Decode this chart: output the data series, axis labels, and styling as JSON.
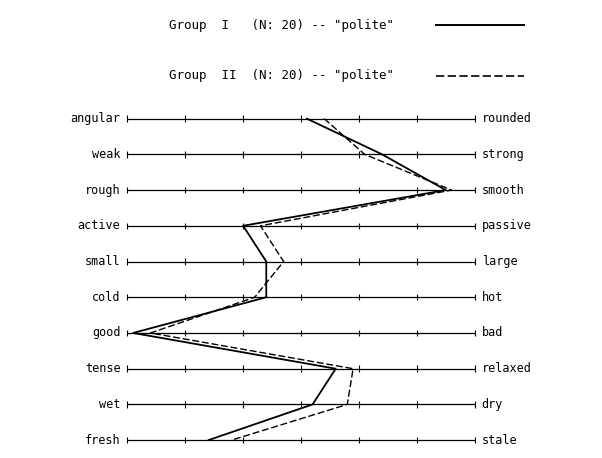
{
  "scales": [
    {
      "left": "angular",
      "right": "rounded"
    },
    {
      "left": "weak",
      "right": "strong"
    },
    {
      "left": "rough",
      "right": "smooth"
    },
    {
      "left": "active",
      "right": "passive"
    },
    {
      "left": "small",
      "right": "large"
    },
    {
      "left": "cold",
      "right": "hot"
    },
    {
      "left": "good",
      "right": "bad"
    },
    {
      "left": "tense",
      "right": "relaxed"
    },
    {
      "left": "wet",
      "right": "dry"
    },
    {
      "left": "fresh",
      "right": "stale"
    }
  ],
  "group1_label": "Group  I   (N: 20) -- \"polite\"",
  "group2_label": "Group  II  (N: 20) -- \"polite\"",
  "group1_values": [
    4.1,
    5.4,
    6.5,
    3.0,
    3.4,
    3.4,
    1.1,
    4.6,
    4.2,
    2.4
  ],
  "group2_values": [
    4.4,
    5.1,
    6.6,
    3.3,
    3.7,
    3.2,
    1.4,
    4.9,
    4.8,
    2.8
  ],
  "xmin": 1,
  "xmax": 7,
  "background_color": "#ffffff"
}
